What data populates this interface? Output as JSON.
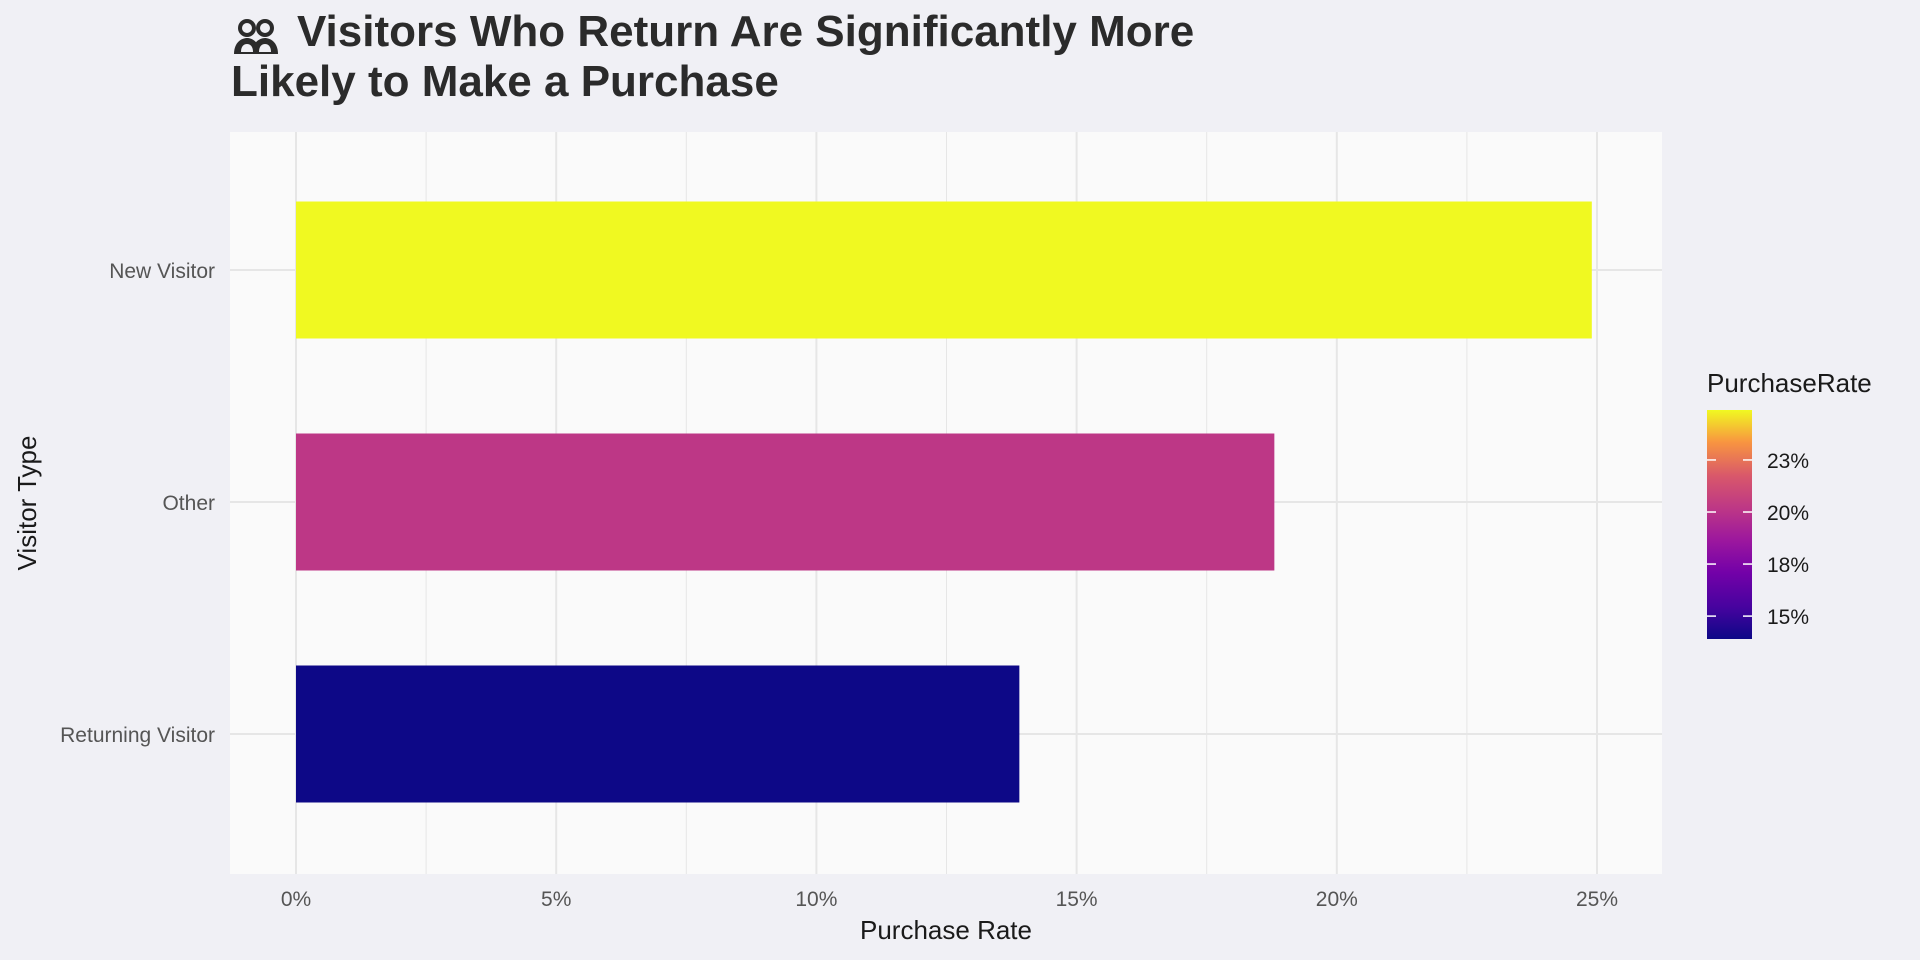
{
  "chart_data": {
    "type": "bar",
    "orientation": "horizontal",
    "title_lines": [
      "Visitors Who Return Are Significantly More",
      "Likely to Make a Purchase"
    ],
    "title_icon": "people-icon",
    "xlabel": "Purchase Rate",
    "ylabel": "Visitor Type",
    "categories": [
      "New Visitor",
      "Other",
      "Returning Visitor"
    ],
    "values": [
      0.249,
      0.188,
      0.139
    ],
    "bar_colors": [
      "#F0F921",
      "#BD3786",
      "#0D0887"
    ],
    "xlim": [
      0,
      0.25
    ],
    "x_ticks": [
      0,
      0.05,
      0.1,
      0.15,
      0.2,
      0.25
    ],
    "x_tick_labels": [
      "0%",
      "5%",
      "10%",
      "15%",
      "20%",
      "25%"
    ],
    "grid": true,
    "legend": {
      "title": "PurchaseRate",
      "position": "right",
      "range": [
        0.139,
        0.249
      ],
      "breaks": [
        0.15,
        0.175,
        0.2,
        0.225
      ],
      "labels": [
        "15%",
        "18%",
        "20%",
        "23%"
      ],
      "colormap": "plasma"
    },
    "colors": {
      "page_background": "#f0f0f5",
      "panel_background": "#fafafa",
      "grid": "#e6e6e6"
    }
  }
}
